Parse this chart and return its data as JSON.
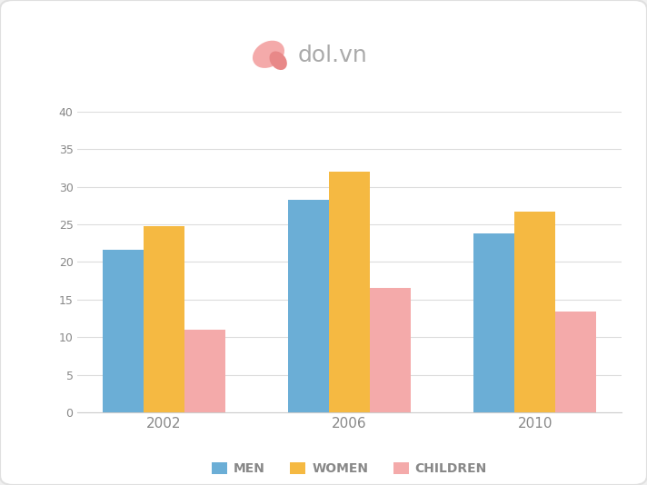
{
  "years": [
    "2002",
    "2006",
    "2010"
  ],
  "men": [
    21.6,
    28.3,
    23.8
  ],
  "women": [
    24.8,
    32.0,
    26.7
  ],
  "children": [
    11.0,
    16.5,
    13.4
  ],
  "bar_colors": {
    "men": "#6BAED6",
    "women": "#F5B942",
    "children": "#F4AAAA"
  },
  "ylim": [
    0,
    40
  ],
  "yticks": [
    0,
    5,
    10,
    15,
    20,
    25,
    30,
    35,
    40
  ],
  "legend_labels": [
    "MEN",
    "WOMEN",
    "CHILDREN"
  ],
  "bar_width": 0.22,
  "outer_bg": "#F0F0F0",
  "card_bg": "#FFFFFF",
  "grid_color": "#DCDCDC",
  "tick_label_color": "#888888",
  "axis_color": "#CCCCCC",
  "logo_text": "dol.vn",
  "logo_color": "#CCCCCC"
}
